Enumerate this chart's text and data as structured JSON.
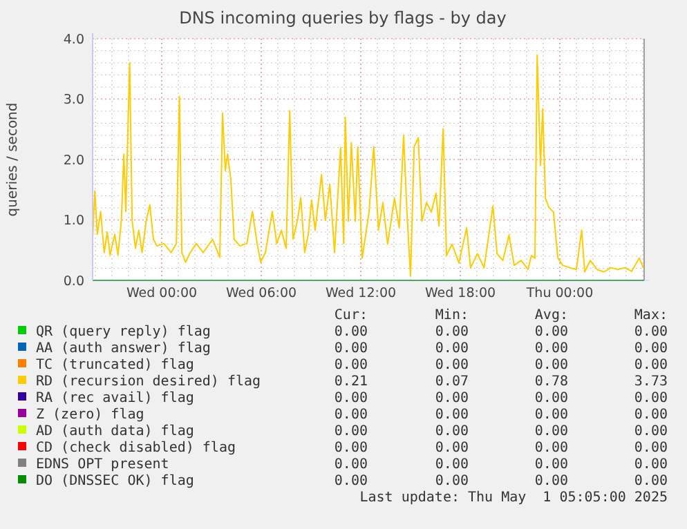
{
  "chart_data": {
    "type": "line",
    "title": "DNS incoming queries by flags - by day",
    "ylabel": "queries / second",
    "xlim": [
      "2025-04-29T19:50",
      "2025-05-01T05:05"
    ],
    "xticks": [
      {
        "value": "2025-04-30T00:00",
        "label": "Wed 00:00"
      },
      {
        "value": "2025-04-30T06:00",
        "label": "Wed 06:00"
      },
      {
        "value": "2025-04-30T12:00",
        "label": "Wed 12:00"
      },
      {
        "value": "2025-04-30T18:00",
        "label": "Wed 18:00"
      },
      {
        "value": "2025-05-01T00:00",
        "label": "Thu 00:00"
      }
    ],
    "ylim": [
      0,
      4
    ],
    "yticks": [
      {
        "value": 0,
        "label": "0.0"
      },
      {
        "value": 1,
        "label": "1.0"
      },
      {
        "value": 2,
        "label": "2.0"
      },
      {
        "value": 3,
        "label": "3.0"
      },
      {
        "value": 4,
        "label": "4.0"
      }
    ],
    "grid": true,
    "legend": "bottom",
    "series": [
      {
        "name": "QR (query reply) flag",
        "color": "#00cc00"
      },
      {
        "name": "AA (auth answer) flag",
        "color": "#0066b3"
      },
      {
        "name": "TC (truncated) flag",
        "color": "#ff8000"
      },
      {
        "name": "RD (recursion desired) flag",
        "color": "#ffcc00",
        "x": [
          "2025-04-29T19:50",
          "2025-04-29T19:58",
          "2025-04-29T20:07",
          "2025-04-29T20:19",
          "2025-04-29T20:32",
          "2025-04-29T20:43",
          "2025-04-29T20:53",
          "2025-04-29T21:10",
          "2025-04-29T21:22",
          "2025-04-29T21:34",
          "2025-04-29T21:43",
          "2025-04-29T21:50",
          "2025-04-29T22:04",
          "2025-04-29T22:13",
          "2025-04-29T22:25",
          "2025-04-29T22:37",
          "2025-04-29T22:49",
          "2025-04-29T23:04",
          "2025-04-29T23:17",
          "2025-04-29T23:30",
          "2025-04-29T23:43",
          "2025-04-30T00:08",
          "2025-04-30T00:34",
          "2025-04-30T00:53",
          "2025-04-30T01:04",
          "2025-04-30T01:13",
          "2025-04-30T01:26",
          "2025-04-30T01:43",
          "2025-04-30T02:05",
          "2025-04-30T02:30",
          "2025-04-30T03:04",
          "2025-04-30T03:30",
          "2025-04-30T03:40",
          "2025-04-30T03:50",
          "2025-04-30T03:58",
          "2025-04-30T04:10",
          "2025-04-30T04:22",
          "2025-04-30T04:43",
          "2025-04-30T05:08",
          "2025-04-30T05:28",
          "2025-04-30T05:45",
          "2025-04-30T05:58",
          "2025-04-30T06:15",
          "2025-04-30T06:40",
          "2025-04-30T06:56",
          "2025-04-30T07:13",
          "2025-04-30T07:30",
          "2025-04-30T07:43",
          "2025-04-30T07:55",
          "2025-04-30T08:11",
          "2025-04-30T08:23",
          "2025-04-30T08:37",
          "2025-04-30T08:50",
          "2025-04-30T09:02",
          "2025-04-30T09:15",
          "2025-04-30T09:38",
          "2025-04-30T09:52",
          "2025-04-30T10:08",
          "2025-04-30T10:25",
          "2025-04-30T10:47",
          "2025-04-30T10:58",
          "2025-04-30T11:04",
          "2025-04-30T11:15",
          "2025-04-30T11:26",
          "2025-04-30T11:40",
          "2025-04-30T11:49",
          "2025-04-30T12:05",
          "2025-04-30T12:30",
          "2025-04-30T12:47",
          "2025-04-30T13:04",
          "2025-04-30T13:20",
          "2025-04-30T13:37",
          "2025-04-30T14:02",
          "2025-04-30T14:19",
          "2025-04-30T14:35",
          "2025-04-30T14:47",
          "2025-04-30T15:00",
          "2025-04-30T15:13",
          "2025-04-30T15:28",
          "2025-04-30T15:41",
          "2025-04-30T15:58",
          "2025-04-30T16:15",
          "2025-04-30T16:32",
          "2025-04-30T16:43",
          "2025-04-30T16:58",
          "2025-04-30T17:10",
          "2025-04-30T17:30",
          "2025-04-30T17:55",
          "2025-04-30T18:23",
          "2025-04-30T18:37",
          "2025-04-30T19:02",
          "2025-04-30T19:26",
          "2025-04-30T19:58",
          "2025-04-30T20:13",
          "2025-04-30T20:34",
          "2025-04-30T20:56",
          "2025-04-30T21:15",
          "2025-04-30T21:40",
          "2025-04-30T22:05",
          "2025-04-30T22:17",
          "2025-04-30T22:30",
          "2025-04-30T22:38",
          "2025-04-30T22:50",
          "2025-04-30T22:58",
          "2025-04-30T23:08",
          "2025-04-30T23:20",
          "2025-04-30T23:37",
          "2025-04-30T23:53",
          "2025-05-01T00:10",
          "2025-05-01T00:35",
          "2025-05-01T01:00",
          "2025-05-01T01:19",
          "2025-05-01T01:30",
          "2025-05-01T01:50",
          "2025-05-01T02:15",
          "2025-05-01T02:40",
          "2025-05-01T03:05",
          "2025-05-01T03:30",
          "2025-05-01T03:55",
          "2025-05-01T04:20",
          "2025-05-01T04:47",
          "2025-05-01T05:02"
        ],
        "values": [
          0.68,
          1.48,
          0.76,
          1.14,
          0.46,
          0.8,
          0.42,
          0.76,
          0.42,
          0.99,
          2.09,
          1.14,
          3.6,
          0.99,
          0.53,
          0.83,
          0.46,
          0.99,
          1.25,
          0.68,
          0.57,
          0.61,
          0.46,
          0.61,
          3.05,
          0.46,
          0.3,
          0.46,
          0.61,
          0.46,
          0.68,
          0.38,
          2.77,
          1.82,
          2.09,
          1.67,
          0.68,
          0.57,
          0.61,
          1.14,
          0.61,
          0.3,
          0.46,
          1.14,
          0.61,
          0.83,
          0.53,
          2.81,
          0.68,
          0.99,
          1.37,
          0.46,
          0.76,
          1.33,
          0.83,
          1.75,
          0.99,
          1.59,
          0.46,
          2.2,
          0.61,
          2.7,
          0.98,
          2.28,
          0.98,
          2.21,
          0.37,
          1.13,
          2.21,
          0.83,
          1.29,
          0.6,
          1.36,
          0.87,
          2.4,
          1.13,
          0.07,
          2.21,
          2.36,
          0.98,
          1.29,
          1.13,
          1.44,
          0.9,
          2.51,
          0.41,
          0.6,
          0.29,
          0.87,
          0.21,
          0.44,
          0.21,
          1.23,
          0.44,
          0.33,
          0.75,
          0.25,
          0.33,
          0.18,
          0.41,
          0.37,
          3.73,
          1.9,
          2.84,
          1.36,
          1.21,
          1.13,
          0.37,
          0.25,
          0.21,
          0.18,
          0.83,
          0.14,
          0.33,
          0.18,
          0.14,
          0.21,
          0.18,
          0.21,
          0.15,
          0.37,
          0.21
        ]
      },
      {
        "name": "RA (rec avail) flag",
        "color": "#330099"
      },
      {
        "name": "Z (zero) flag",
        "color": "#990099"
      },
      {
        "name": "AD (auth data) flag",
        "color": "#ccff00"
      },
      {
        "name": "CD (check disabled) flag",
        "color": "#ff0000"
      },
      {
        "name": "EDNS OPT present",
        "color": "#808080"
      },
      {
        "name": "DO (DNSSEC OK) flag",
        "color": "#008f00",
        "x": [
          "2025-04-29T19:50",
          "2025-05-01T05:05"
        ],
        "values": [
          0,
          0
        ]
      }
    ],
    "annotations": [
      "Cur:",
      "Min:",
      "Avg:",
      "Max:",
      "0.00",
      "0.00",
      "0.00",
      "0.00",
      "0.00",
      "0.00",
      "0.00",
      "0.00",
      "0.00",
      "0.00",
      "0.00",
      "0.00",
      "0.21",
      "0.07",
      "0.78",
      "3.73",
      "0.00",
      "0.00",
      "0.00",
      "0.00",
      "0.00",
      "0.00",
      "0.00",
      "0.00",
      "0.00",
      "0.00",
      "0.00",
      "0.00",
      "0.00",
      "0.00",
      "0.00",
      "0.00",
      "0.00",
      "0.00",
      "0.00",
      "0.00",
      "0.00",
      "0.00",
      "0.00",
      "0.00",
      "Last update: Thu May  1 05:05:00 2025"
    ]
  }
}
